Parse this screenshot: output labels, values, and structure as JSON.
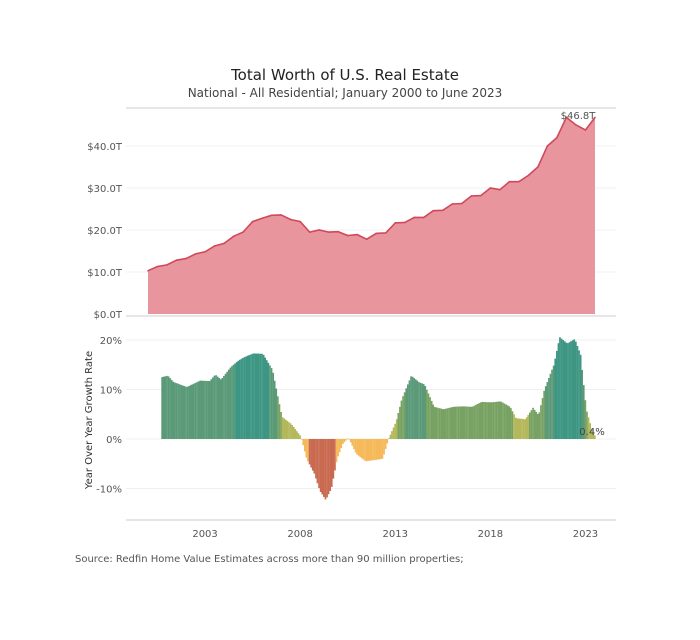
{
  "chart_data": [
    {
      "type": "area",
      "title": "Total Worth of U.S. Real Estate",
      "subtitle": "National - All Residential; January 2000 to June 2023",
      "ylabel": "",
      "ylim": [
        0,
        50
      ],
      "yticks": [
        0,
        10,
        20,
        30,
        40
      ],
      "ytick_labels": [
        "$0.0T",
        "$10.0T",
        "$20.0T",
        "$30.0T",
        "$40.0T"
      ],
      "annotation": "$46.8T",
      "x": [
        2000.0,
        2000.5,
        2001,
        2001.5,
        2002,
        2002.5,
        2003,
        2003.5,
        2004,
        2004.5,
        2005,
        2005.5,
        2006,
        2006.5,
        2007,
        2007.5,
        2008,
        2008.5,
        2009,
        2009.5,
        2010,
        2010.5,
        2011,
        2011.5,
        2012,
        2012.5,
        2013,
        2013.5,
        2014,
        2014.5,
        2015,
        2015.5,
        2016,
        2016.5,
        2017,
        2017.5,
        2018,
        2018.5,
        2019,
        2019.5,
        2020,
        2020.5,
        2021,
        2021.5,
        2022,
        2022.5,
        2023,
        2023.5
      ],
      "values": [
        10.3,
        11.3,
        11.7,
        12.8,
        13.2,
        14.3,
        14.8,
        16.2,
        16.8,
        18.5,
        19.5,
        22,
        22.8,
        23.5,
        23.6,
        22.5,
        22,
        19.5,
        20,
        19.5,
        19.6,
        18.7,
        18.9,
        17.8,
        19.2,
        19.3,
        21.7,
        21.8,
        23,
        23,
        24.6,
        24.7,
        26.2,
        26.3,
        28.1,
        28.2,
        30,
        29.6,
        31.5,
        31.5,
        33,
        35,
        40,
        42,
        46.8,
        45,
        43.8,
        46.8
      ],
      "unit": "trillion USD"
    },
    {
      "type": "area",
      "ylabel": "Year Over Year Growth Rate",
      "ylim": [
        -16,
        22
      ],
      "yticks": [
        -10,
        0,
        10,
        20
      ],
      "ytick_labels": [
        "-10%",
        "0%",
        "10%",
        "20%"
      ],
      "xticks": [
        "2003",
        "2008",
        "2013",
        "2018",
        "2023"
      ],
      "annotation": "0.4%",
      "x": [
        2000.7,
        2001,
        2001.3,
        2002,
        2002.7,
        2003.2,
        2003.5,
        2003.8,
        2004.3,
        2004.7,
        2005,
        2005.5,
        2006,
        2006.5,
        2007,
        2007.5,
        2008,
        2008.3,
        2008.7,
        2009,
        2009.3,
        2009.6,
        2009.9,
        2010.2,
        2010.5,
        2010.9,
        2011.4,
        2011.8,
        2012.3,
        2012.6,
        2013,
        2013.3,
        2013.8,
        2014.2,
        2014.5,
        2015,
        2015.5,
        2016,
        2016.5,
        2017,
        2017.5,
        2018,
        2018.5,
        2019,
        2019.3,
        2019.8,
        2020.2,
        2020.5,
        2020.8,
        2021.3,
        2021.6,
        2022,
        2022.4,
        2022.7,
        2023,
        2023.3,
        2023.5
      ],
      "values": [
        12.5,
        12.8,
        11.5,
        10.5,
        11.8,
        11.7,
        13,
        12,
        14.5,
        15.8,
        16.5,
        17.3,
        17.2,
        14,
        4.5,
        3,
        0.5,
        -4,
        -7,
        -10.5,
        -12.3,
        -10,
        -4,
        -1,
        0.3,
        -3,
        -4.5,
        -4.3,
        -4,
        0,
        3.5,
        8,
        12.8,
        11.5,
        11,
        6.5,
        6,
        6.5,
        6.6,
        6.5,
        7.5,
        7.4,
        7.6,
        6.5,
        4.2,
        4,
        6.3,
        4.8,
        10,
        15,
        20.6,
        19.3,
        20.2,
        17,
        6,
        1.8,
        0.4
      ],
      "color_scale": {
        "high": "#3d9683",
        "mid_high": "#5a9a78",
        "mid": "#78a263",
        "low": "#b4b85a",
        "neg": "#f5b95a",
        "deep_neg": "#c96a50"
      }
    }
  ],
  "colors": {
    "line": "#d0495a",
    "fill": "#e8959e"
  },
  "source": "Source: Redfin Home Value Estimates across more than 90 million properties;"
}
